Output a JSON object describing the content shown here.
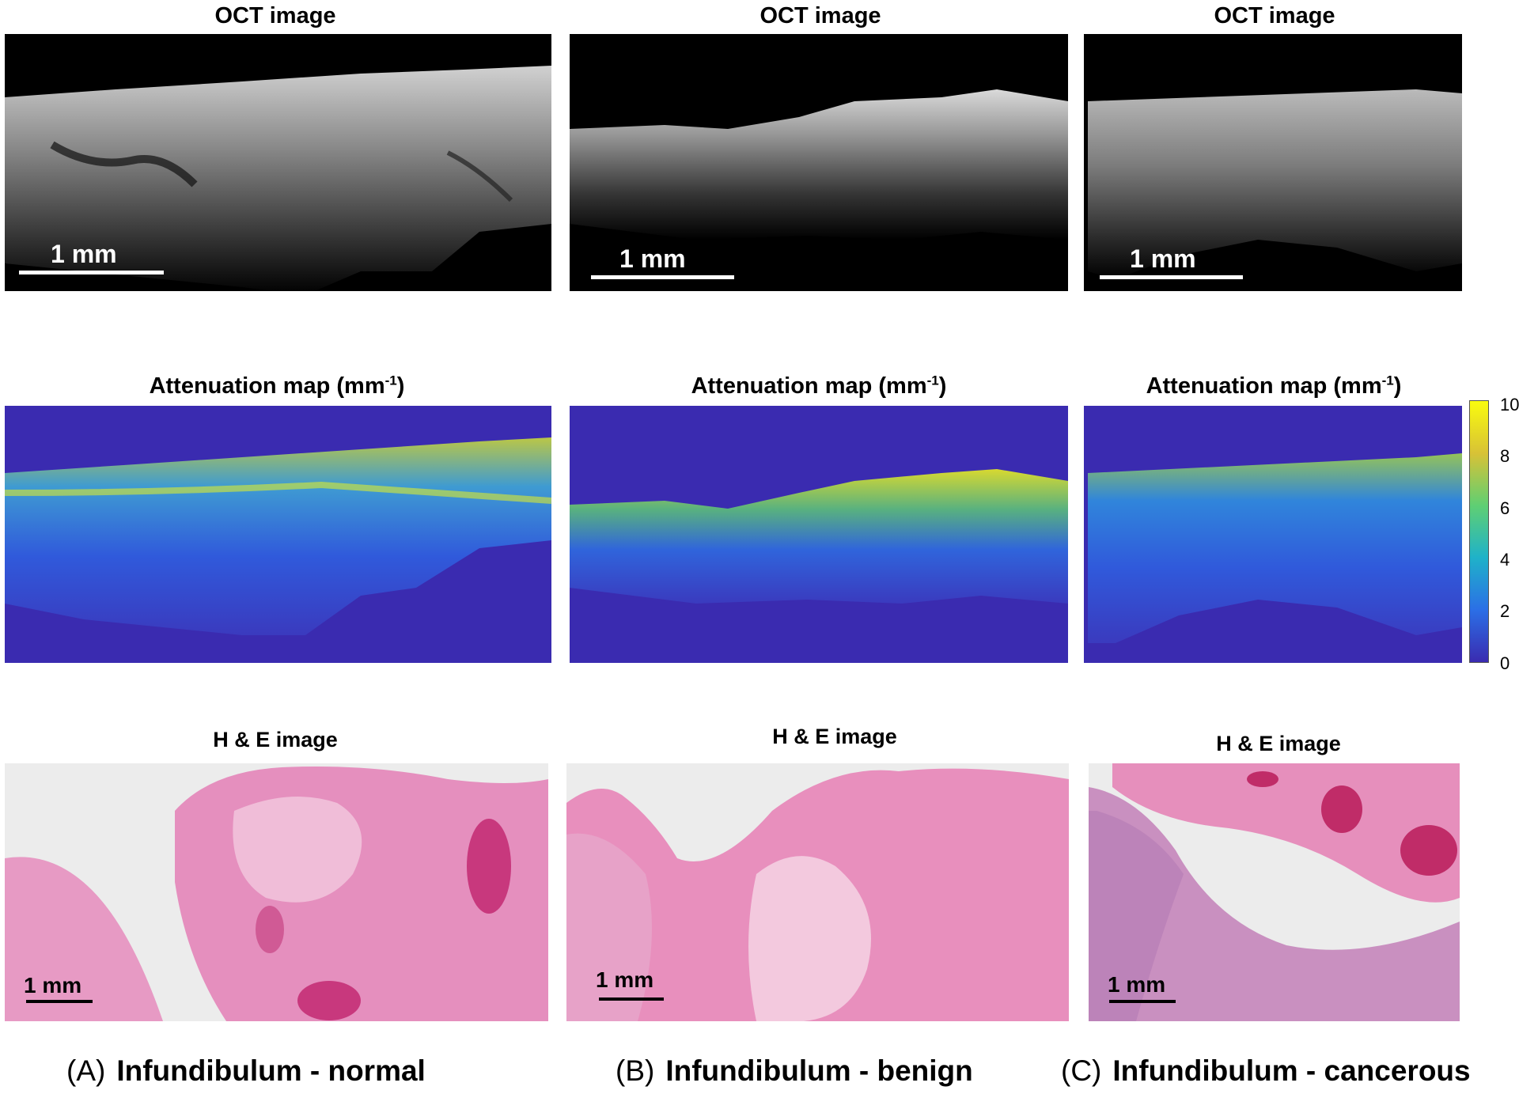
{
  "row_titles": {
    "oct": "OCT image",
    "attenuation": "Attenuation map (mm",
    "attenuation_sup": "-1",
    "attenuation_close": ")",
    "he": "H & E image"
  },
  "scale_label": "1 mm",
  "columns": [
    {
      "letter": "(A)",
      "name": "Infundibulum - normal"
    },
    {
      "letter": "(B)",
      "name": "Infundibulum - benign"
    },
    {
      "letter": "(C)",
      "name": "Infundibulum - cancerous"
    }
  ],
  "colorbar": {
    "ticks": [
      "10",
      "8",
      "6",
      "4",
      "2",
      "0"
    ],
    "min": 0,
    "max": 10,
    "colors": [
      "#3a2bb0",
      "#2b6fe6",
      "#1fb2c9",
      "#5fcf73",
      "#d8c236",
      "#f9fb0e"
    ]
  }
}
